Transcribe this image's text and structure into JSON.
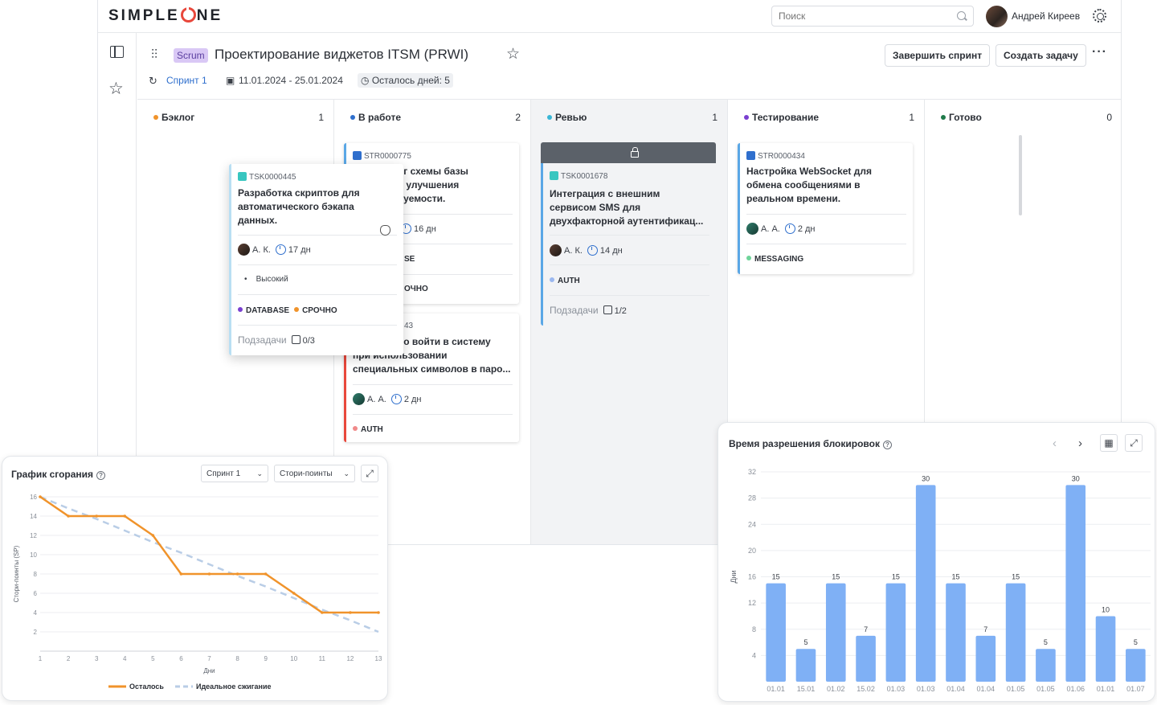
{
  "topbar": {
    "logo_left": "SIMPLE",
    "logo_right": "NE",
    "search_placeholder": "Поиск",
    "user_name": "Андрей Киреев"
  },
  "header": {
    "badge": "Scrum",
    "title": "Проектирование виджетов ITSM (PRWI)",
    "complete_sprint": "Завершить спринт",
    "create_task": "Создать задачу",
    "more": "···",
    "sprint_link": "Спринт 1",
    "dates": "11.01.2024 - 25.01.2024",
    "days_left": "Осталось дней: 5"
  },
  "columns": [
    {
      "name": "Бэклог",
      "count": "1",
      "color": "#f0932b"
    },
    {
      "name": "В работе",
      "count": "2",
      "color": "#2f6fcd"
    },
    {
      "name": "Ревью",
      "count": "1",
      "color": "#38b6d6"
    },
    {
      "name": "Тестирование",
      "count": "1",
      "color": "#7a3fd0"
    },
    {
      "name": "Готово",
      "count": "0",
      "color": "#1f7a4a"
    }
  ],
  "cards": {
    "inwork1": {
      "id": "STR0000775",
      "title_l1": "нг схемы базы",
      "title_l2": "я улучшения",
      "title_l3": "оуемости.",
      "est": "16 дн",
      "tag_partial": "SE",
      "prio_partial": "ОЧНО"
    },
    "inwork2": {
      "id_partial": "43",
      "title_l1": "но войти в систему",
      "title_l2": "при использовании",
      "title_l3": "специальных символов в паро...",
      "assignee": "А. А.",
      "est": "2 дн",
      "tag": "AUTH"
    },
    "review": {
      "id": "TSK0001678",
      "title_l1": "Интеграция с внешним",
      "title_l2": "сервисом SMS для",
      "title_l3": "двухфакторной аутентификац...",
      "assignee": "А. К.",
      "est": "14 дн",
      "tag": "AUTH",
      "subtasks_label": "Подзадачи",
      "subtasks": "1/2"
    },
    "testing": {
      "id": "STR0000434",
      "title_l1": "Настройка WebSocket для",
      "title_l2": "обмена сообщениями в",
      "title_l3": "реальном времени.",
      "assignee": "А. А.",
      "est": "2 дн",
      "tag": "MESSAGING"
    },
    "floating": {
      "id": "TSK0000445",
      "title_l1": "Разработка скриптов для",
      "title_l2": "автоматического бэкапа",
      "title_l3": "данных.",
      "assignee": "А. К.",
      "est": "17 дн",
      "priority": "Высокий",
      "tag1": "DATABASE",
      "tag2": "СРОЧНО",
      "subtasks_label": "Подзадачи",
      "subtasks": "0/3"
    }
  },
  "burndown": {
    "title": "График сгорания",
    "select_sprint": "Спринт 1",
    "select_metric": "Стори-поинты"
  },
  "blocks": {
    "title": "Время разрешения блокировок"
  },
  "chart_data": [
    {
      "type": "line",
      "title": "График сгорания",
      "xlabel": "Дни",
      "ylabel": "Стори-поинты (SP)",
      "x": [
        1,
        2,
        3,
        4,
        5,
        6,
        7,
        8,
        9,
        10,
        11,
        12,
        13
      ],
      "xlim": [
        1,
        13
      ],
      "ylim": [
        0,
        16
      ],
      "yticks": [
        2,
        4,
        6,
        8,
        10,
        12,
        14,
        16
      ],
      "grid": true,
      "legend": "bottom",
      "series": [
        {
          "name": "Осталось",
          "color": "#f0932b",
          "style": "solid",
          "values": [
            16,
            14,
            14,
            14,
            12,
            8,
            8,
            8,
            8,
            6,
            4,
            4,
            4
          ]
        },
        {
          "name": "Идеальное сжигание",
          "color": "#b9cde6",
          "style": "dashed",
          "values": [
            16,
            14.8,
            13.7,
            12.5,
            11.3,
            10.2,
            9,
            7.8,
            6.7,
            5.5,
            4.3,
            3.2,
            2
          ]
        }
      ]
    },
    {
      "type": "bar",
      "title": "Время разрешения блокировок",
      "ylabel": "Дни",
      "ylim": [
        0,
        32
      ],
      "yticks": [
        4,
        8,
        12,
        16,
        20,
        24,
        28,
        32
      ],
      "grid": true,
      "color": "#7fb0f5",
      "categories": [
        "01.01",
        "15.01",
        "01.02",
        "15.02",
        "01.03",
        "01.03",
        "01.04",
        "01.04",
        "01.05",
        "01.05",
        "01.06",
        "01.01",
        "01.07"
      ],
      "values": [
        15,
        5,
        15,
        7,
        15,
        30,
        15,
        7,
        15,
        5,
        30,
        10,
        5
      ]
    }
  ]
}
